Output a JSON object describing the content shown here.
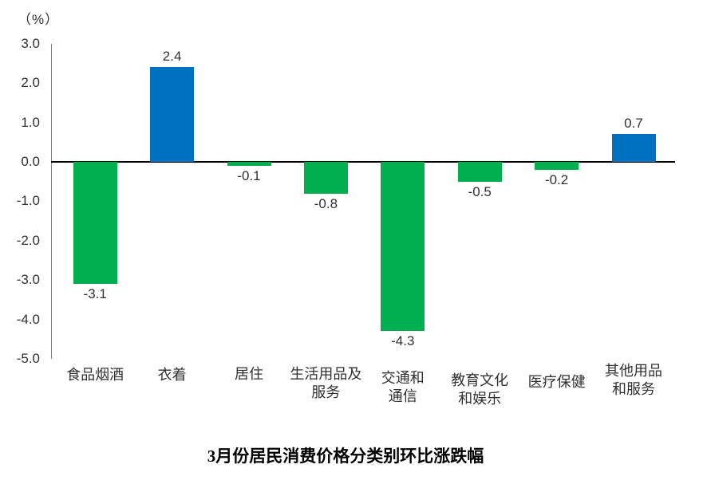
{
  "chart_data": {
    "type": "bar",
    "title": "3月份居民消费价格分类别环比涨跌幅",
    "unit_label": "（%）",
    "categories": [
      "食品烟酒",
      "衣着",
      "居住",
      "生活用品及服务",
      "交通和通信",
      "教育文化和娱乐",
      "医疗保健",
      "其他用品和服务"
    ],
    "category_lines": [
      [
        "食品烟酒"
      ],
      [
        "衣着"
      ],
      [
        "居住"
      ],
      [
        "生活用品及",
        "服务"
      ],
      [
        "交通和",
        "通信"
      ],
      [
        "教育文化",
        "和娱乐"
      ],
      [
        "医疗保健"
      ],
      [
        "其他用品",
        "和服务"
      ]
    ],
    "values": [
      -3.1,
      2.4,
      -0.1,
      -0.8,
      -4.3,
      -0.5,
      -0.2,
      0.7
    ],
    "data_labels": [
      "-3.1",
      "2.4",
      "-0.1",
      "-0.8",
      "-4.3",
      "-0.5",
      "-0.2",
      "0.7"
    ],
    "yticks": [
      "3.0",
      "2.0",
      "1.0",
      "0.0",
      "-1.0",
      "-2.0",
      "-3.0",
      "-4.0",
      "-5.0"
    ],
    "ylim": [
      -5.0,
      3.0
    ],
    "xlabel": "",
    "ylabel": "（%）",
    "colors": {
      "positive": "#0070C0",
      "negative": "#00B050"
    },
    "grid": false,
    "legend": null
  }
}
